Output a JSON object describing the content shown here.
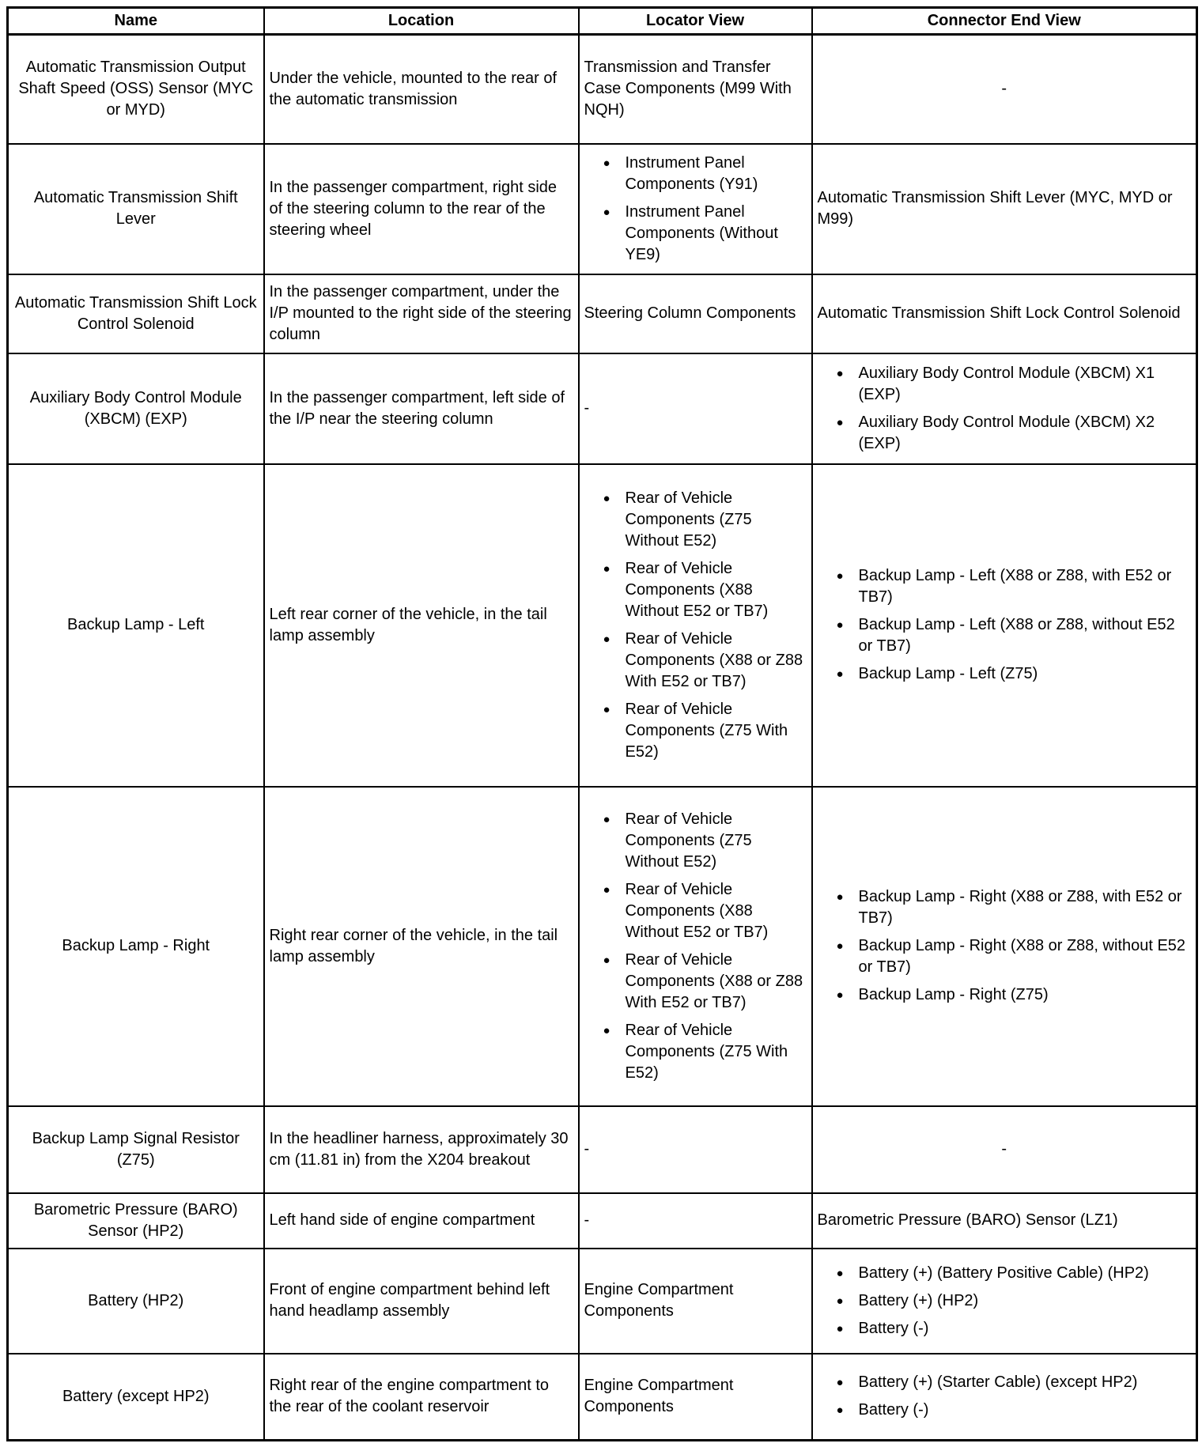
{
  "page": {
    "background_color": "#ffffff",
    "text_color": "#000000",
    "border_color": "#000000",
    "bullet_glyph": "●"
  },
  "table": {
    "headers": [
      "Name",
      "Location",
      "Locator View",
      "Connector End View"
    ],
    "rows": [
      {
        "name": "Automatic Transmission Output Shaft Speed (OSS) Sensor (MYC or MYD)",
        "location": "Under the vehicle, mounted to the rear of the automatic transmission",
        "locator": {
          "kind": "text",
          "align": "left",
          "items": [
            "Transmission and Transfer Case Components (M99 With NQH)"
          ]
        },
        "connector": {
          "kind": "dash",
          "align": "center",
          "items": [
            "-"
          ]
        }
      },
      {
        "name": "Automatic Transmission Shift Lever",
        "location": "In the passenger compartment, right side of the steering column to the rear of the steering wheel",
        "locator": {
          "kind": "bullets",
          "align": "left",
          "items": [
            "Instrument Panel Components (Y91)",
            "Instrument Panel Components (Without YE9)"
          ]
        },
        "connector": {
          "kind": "text",
          "align": "left",
          "items": [
            "Automatic Transmission Shift Lever (MYC, MYD or M99)"
          ]
        }
      },
      {
        "name": "Automatic Transmission Shift Lock Control Solenoid",
        "location": "In the passenger compartment, under the I/P mounted to the right side of the steering column",
        "locator": {
          "kind": "text",
          "align": "left",
          "items": [
            "Steering Column Components"
          ]
        },
        "connector": {
          "kind": "text",
          "align": "left",
          "items": [
            "Automatic Transmission Shift Lock Control Solenoid"
          ]
        }
      },
      {
        "name": "Auxiliary Body Control Module (XBCM) (EXP)",
        "location": "In the passenger compartment, left side of the I/P near the steering column",
        "locator": {
          "kind": "dash",
          "align": "left",
          "items": [
            "-"
          ]
        },
        "connector": {
          "kind": "bullets",
          "align": "left",
          "items": [
            "Auxiliary Body Control Module (XBCM) X1 (EXP)",
            "Auxiliary Body Control Module (XBCM) X2 (EXP)"
          ]
        }
      },
      {
        "name": "Backup Lamp - Left",
        "location": "Left rear corner of the vehicle, in the tail lamp assembly",
        "locator": {
          "kind": "bullets",
          "align": "left",
          "items": [
            "Rear of Vehicle Components (Z75 Without E52)",
            "Rear of Vehicle Components (X88 Without E52 or TB7)",
            "Rear of Vehicle Components (X88 or Z88 With E52 or TB7)",
            "Rear of Vehicle Components (Z75 With E52)"
          ]
        },
        "connector": {
          "kind": "bullets",
          "align": "left",
          "items": [
            "Backup Lamp - Left (X88 or Z88, with E52 or TB7)",
            "Backup Lamp - Left (X88 or Z88, without E52 or TB7)",
            "Backup Lamp - Left (Z75)"
          ]
        }
      },
      {
        "name": "Backup Lamp - Right",
        "location": "Right rear corner of the vehicle, in the tail lamp assembly",
        "locator": {
          "kind": "bullets",
          "align": "left",
          "items": [
            "Rear of Vehicle Components (Z75 Without E52)",
            "Rear of Vehicle Components (X88 Without E52 or TB7)",
            "Rear of Vehicle Components (X88 or Z88 With E52 or TB7)",
            "Rear of Vehicle Components (Z75 With E52)"
          ]
        },
        "connector": {
          "kind": "bullets",
          "align": "left",
          "items": [
            "Backup Lamp - Right (X88 or Z88, with E52 or TB7)",
            "Backup Lamp - Right (X88 or Z88, without E52 or TB7)",
            "Backup Lamp - Right (Z75)"
          ]
        }
      },
      {
        "name": "Backup Lamp Signal Resistor (Z75)",
        "location": "In the headliner harness, approximately 30 cm (11.81 in) from the X204 breakout",
        "locator": {
          "kind": "dash",
          "align": "left",
          "items": [
            "-"
          ]
        },
        "connector": {
          "kind": "dash",
          "align": "center",
          "items": [
            "-"
          ]
        }
      },
      {
        "name": "Barometric Pressure (BARO) Sensor (HP2)",
        "location": "Left hand side of engine compartment",
        "locator": {
          "kind": "dash",
          "align": "left",
          "items": [
            "-"
          ]
        },
        "connector": {
          "kind": "text",
          "align": "left",
          "items": [
            "Barometric Pressure (BARO) Sensor (LZ1)"
          ]
        }
      },
      {
        "name": "Battery (HP2)",
        "location": "Front of engine compartment behind left hand headlamp assembly",
        "locator": {
          "kind": "text",
          "align": "left",
          "items": [
            "Engine Compartment Components"
          ]
        },
        "connector": {
          "kind": "bullets",
          "align": "left",
          "items": [
            "Battery (+) (Battery Positive Cable) (HP2)",
            "Battery (+) (HP2)",
            "Battery (-)"
          ]
        }
      },
      {
        "name": "Battery (except HP2)",
        "location": "Right rear of the engine compartment to the rear of the coolant reservoir",
        "locator": {
          "kind": "text",
          "align": "left",
          "items": [
            "Engine Compartment Components"
          ]
        },
        "connector": {
          "kind": "bullets",
          "align": "left",
          "items": [
            "Battery (+) (Starter Cable) (except HP2)",
            "Battery (-)"
          ]
        }
      }
    ]
  }
}
